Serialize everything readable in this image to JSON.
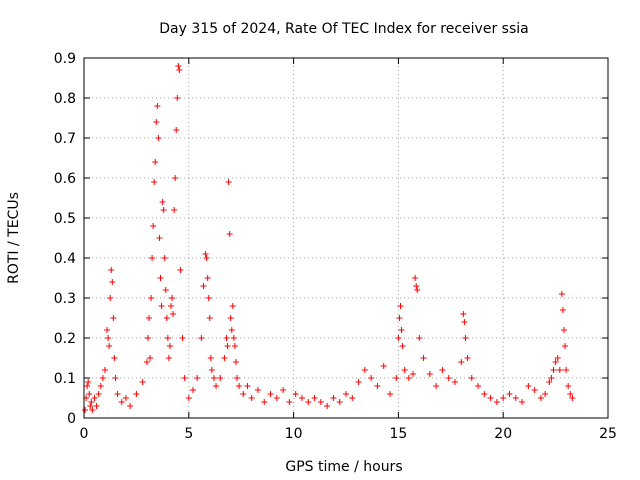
{
  "chart_data": {
    "type": "scatter",
    "title": "Day 315 of 2024, Rate Of TEC Index for receiver ssia",
    "xlabel": "GPS time / hours",
    "ylabel": "ROTI / TECUs",
    "xlim": [
      0,
      25
    ],
    "ylim": [
      0,
      0.9
    ],
    "x_ticks": [
      "0",
      "5",
      "10",
      "15",
      "20",
      "25"
    ],
    "y_ticks": [
      "0",
      "0.1",
      "0.2",
      "0.3",
      "0.4",
      "0.5",
      "0.6",
      "0.7",
      "0.8",
      "0.9"
    ],
    "grid": true,
    "marker": "+",
    "color": "#ff0000",
    "series": [
      {
        "name": "ROTI",
        "x": [
          0.05,
          0.1,
          0.15,
          0.2,
          0.25,
          0.3,
          0.35,
          0.4,
          0.5,
          0.6,
          0.7,
          0.8,
          0.9,
          1.0,
          1.1,
          1.15,
          1.2,
          1.25,
          1.3,
          1.35,
          1.4,
          1.45,
          1.5,
          1.6,
          1.8,
          2.0,
          2.2,
          2.5,
          2.8,
          3.0,
          3.05,
          3.1,
          3.15,
          3.2,
          3.25,
          3.3,
          3.35,
          3.4,
          3.45,
          3.5,
          3.55,
          3.6,
          3.65,
          3.7,
          3.75,
          3.8,
          3.85,
          3.9,
          3.95,
          4.0,
          4.05,
          4.1,
          4.15,
          4.2,
          4.25,
          4.3,
          4.35,
          4.4,
          4.45,
          4.5,
          4.55,
          4.6,
          4.7,
          4.8,
          5.0,
          5.2,
          5.4,
          5.6,
          5.7,
          5.8,
          5.85,
          5.9,
          5.95,
          6.0,
          6.05,
          6.1,
          6.2,
          6.3,
          6.5,
          6.7,
          6.8,
          6.85,
          6.9,
          6.95,
          7.0,
          7.05,
          7.1,
          7.15,
          7.2,
          7.25,
          7.3,
          7.4,
          7.6,
          7.8,
          8.0,
          8.3,
          8.6,
          8.9,
          9.2,
          9.5,
          9.8,
          10.1,
          10.4,
          10.7,
          11.0,
          11.3,
          11.6,
          11.9,
          12.2,
          12.5,
          12.8,
          13.1,
          13.4,
          13.7,
          14.0,
          14.3,
          14.6,
          14.9,
          15.0,
          15.05,
          15.1,
          15.15,
          15.2,
          15.3,
          15.5,
          15.7,
          15.8,
          15.85,
          15.9,
          16.0,
          16.2,
          16.5,
          16.8,
          17.1,
          17.4,
          17.7,
          18.0,
          18.1,
          18.15,
          18.2,
          18.3,
          18.5,
          18.8,
          19.1,
          19.4,
          19.7,
          20.0,
          20.3,
          20.6,
          20.9,
          21.2,
          21.5,
          21.8,
          22.0,
          22.2,
          22.3,
          22.4,
          22.5,
          22.6,
          22.7,
          22.8,
          22.85,
          22.9,
          22.95,
          23.0,
          23.1,
          23.2,
          23.3
        ],
        "y": [
          0.02,
          0.05,
          0.08,
          0.09,
          0.06,
          0.03,
          0.04,
          0.02,
          0.05,
          0.03,
          0.06,
          0.08,
          0.1,
          0.12,
          0.22,
          0.2,
          0.18,
          0.3,
          0.37,
          0.34,
          0.25,
          0.15,
          0.1,
          0.06,
          0.04,
          0.05,
          0.03,
          0.06,
          0.09,
          0.14,
          0.2,
          0.25,
          0.15,
          0.3,
          0.4,
          0.48,
          0.59,
          0.64,
          0.74,
          0.78,
          0.7,
          0.45,
          0.35,
          0.28,
          0.54,
          0.52,
          0.4,
          0.32,
          0.25,
          0.2,
          0.15,
          0.18,
          0.28,
          0.3,
          0.26,
          0.52,
          0.6,
          0.72,
          0.8,
          0.88,
          0.87,
          0.37,
          0.2,
          0.1,
          0.05,
          0.07,
          0.1,
          0.2,
          0.33,
          0.41,
          0.4,
          0.35,
          0.3,
          0.25,
          0.15,
          0.12,
          0.1,
          0.08,
          0.1,
          0.15,
          0.2,
          0.18,
          0.59,
          0.46,
          0.25,
          0.22,
          0.28,
          0.2,
          0.18,
          0.14,
          0.1,
          0.08,
          0.06,
          0.08,
          0.05,
          0.07,
          0.04,
          0.06,
          0.05,
          0.07,
          0.04,
          0.06,
          0.05,
          0.04,
          0.05,
          0.04,
          0.03,
          0.05,
          0.04,
          0.06,
          0.05,
          0.09,
          0.12,
          0.1,
          0.08,
          0.13,
          0.06,
          0.1,
          0.2,
          0.25,
          0.28,
          0.22,
          0.18,
          0.12,
          0.1,
          0.11,
          0.35,
          0.33,
          0.32,
          0.2,
          0.15,
          0.11,
          0.08,
          0.12,
          0.1,
          0.09,
          0.14,
          0.26,
          0.24,
          0.2,
          0.15,
          0.1,
          0.08,
          0.06,
          0.05,
          0.04,
          0.05,
          0.06,
          0.05,
          0.04,
          0.08,
          0.07,
          0.05,
          0.06,
          0.09,
          0.1,
          0.12,
          0.14,
          0.15,
          0.12,
          0.31,
          0.27,
          0.22,
          0.18,
          0.12,
          0.08,
          0.06,
          0.05
        ]
      }
    ]
  }
}
